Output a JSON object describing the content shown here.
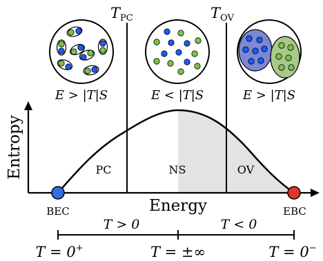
{
  "labels": {
    "t_pc": "T",
    "t_pc_sub": "PC",
    "t_ov": "T",
    "t_ov_sub": "OV",
    "y_axis": "Entropy",
    "x_axis": "Energy",
    "cond_left": "E > |T|S",
    "cond_mid": "E < |T|S",
    "cond_right": "E > |T|S",
    "region_pc": "PC",
    "region_ns": "NS",
    "region_ov": "OV",
    "bec": "BEC",
    "ebc": "EBC",
    "t_pos": "T > 0",
    "t_neg": "T < 0",
    "t_zero_plus": "T = 0",
    "t_zero_plus_sup": "+",
    "t_inf": "T = ±∞",
    "t_zero_minus": "T = 0",
    "t_zero_minus_sup": "−"
  },
  "colors": {
    "blue_particle": "#1a5cff",
    "green_particle": "#7dc24b",
    "bec_dot": "#2f6fe0",
    "ebc_dot": "#e0352a",
    "blue_cluster": "#7c88d6",
    "green_cluster": "#a8c98a",
    "shade": "#e3e3e3"
  }
}
